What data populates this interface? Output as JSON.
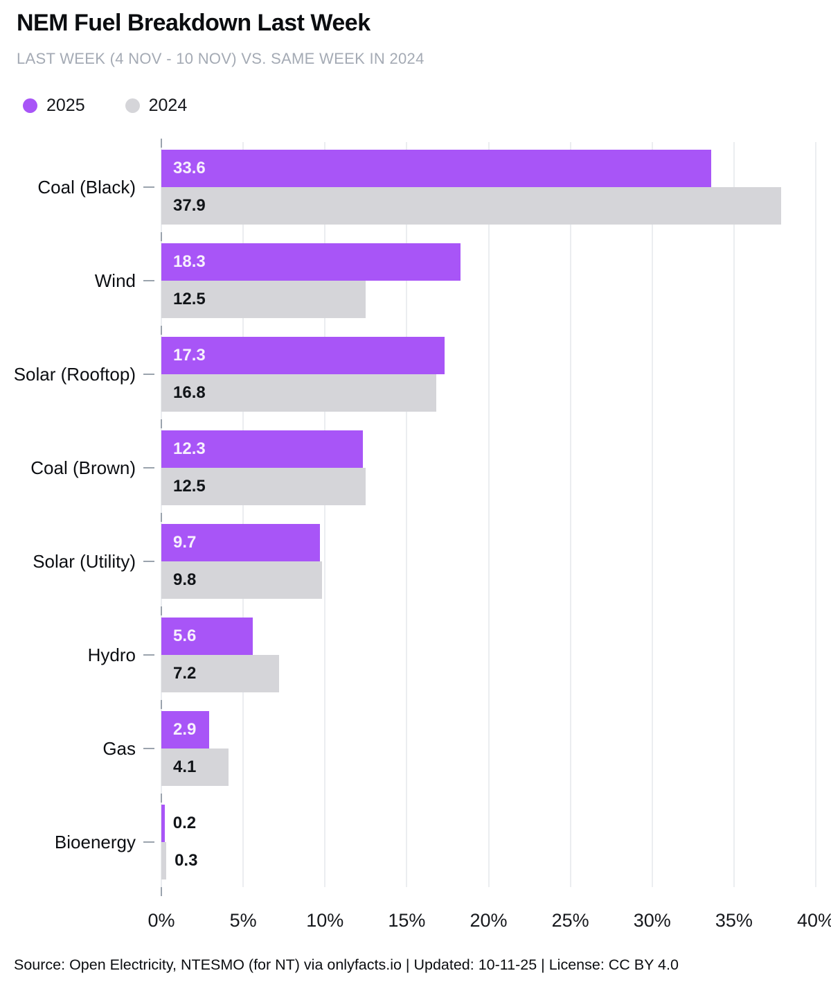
{
  "header": {
    "title": "NEM Fuel Breakdown Last Week",
    "subtitle": "LAST WEEK (4 NOV - 10 NOV) VS. SAME WEEK IN 2024"
  },
  "legend": {
    "items": [
      {
        "label": "2025",
        "color": "#a855f7"
      },
      {
        "label": "2024",
        "color": "#d5d5d9"
      }
    ]
  },
  "chart_data": {
    "type": "bar",
    "orientation": "horizontal",
    "title": "NEM Fuel Breakdown Last Week",
    "subtitle": "LAST WEEK (4 NOV - 10 NOV) VS. SAME WEEK IN 2024",
    "categories": [
      "Coal (Black)",
      "Wind",
      "Solar (Rooftop)",
      "Coal (Brown)",
      "Solar (Utility)",
      "Hydro",
      "Gas",
      "Bioenergy"
    ],
    "series": [
      {
        "name": "2025",
        "color": "#a855f7",
        "label_color": "#f7f0fd",
        "values": [
          33.6,
          18.3,
          17.3,
          12.3,
          9.7,
          5.6,
          2.9,
          0.2
        ]
      },
      {
        "name": "2024",
        "color": "#d5d5d9",
        "label_color": "#111418",
        "values": [
          37.9,
          12.5,
          16.8,
          12.5,
          9.8,
          7.2,
          4.1,
          0.3
        ]
      }
    ],
    "xlim": [
      0,
      40
    ],
    "x_ticks": [
      "0%",
      "5%",
      "10%",
      "15%",
      "20%",
      "25%",
      "30%",
      "35%",
      "40%"
    ],
    "x_tick_values": [
      0,
      5,
      10,
      15,
      20,
      25,
      30,
      35,
      40
    ],
    "grid": true,
    "legend_position": "top-left",
    "value_labels": true
  },
  "colors": {
    "accent_2025": "#a855f7",
    "bar_2024": "#d5d5d9",
    "gridline": "#ebedf0",
    "tick": "#9aa3ad",
    "subtitle_text": "#a4aab4"
  },
  "footer": {
    "source": "Source: Open Electricity, NTESMO (for NT) via onlyfacts.io | Updated: 10-11-25 | License: CC BY 4.0"
  }
}
